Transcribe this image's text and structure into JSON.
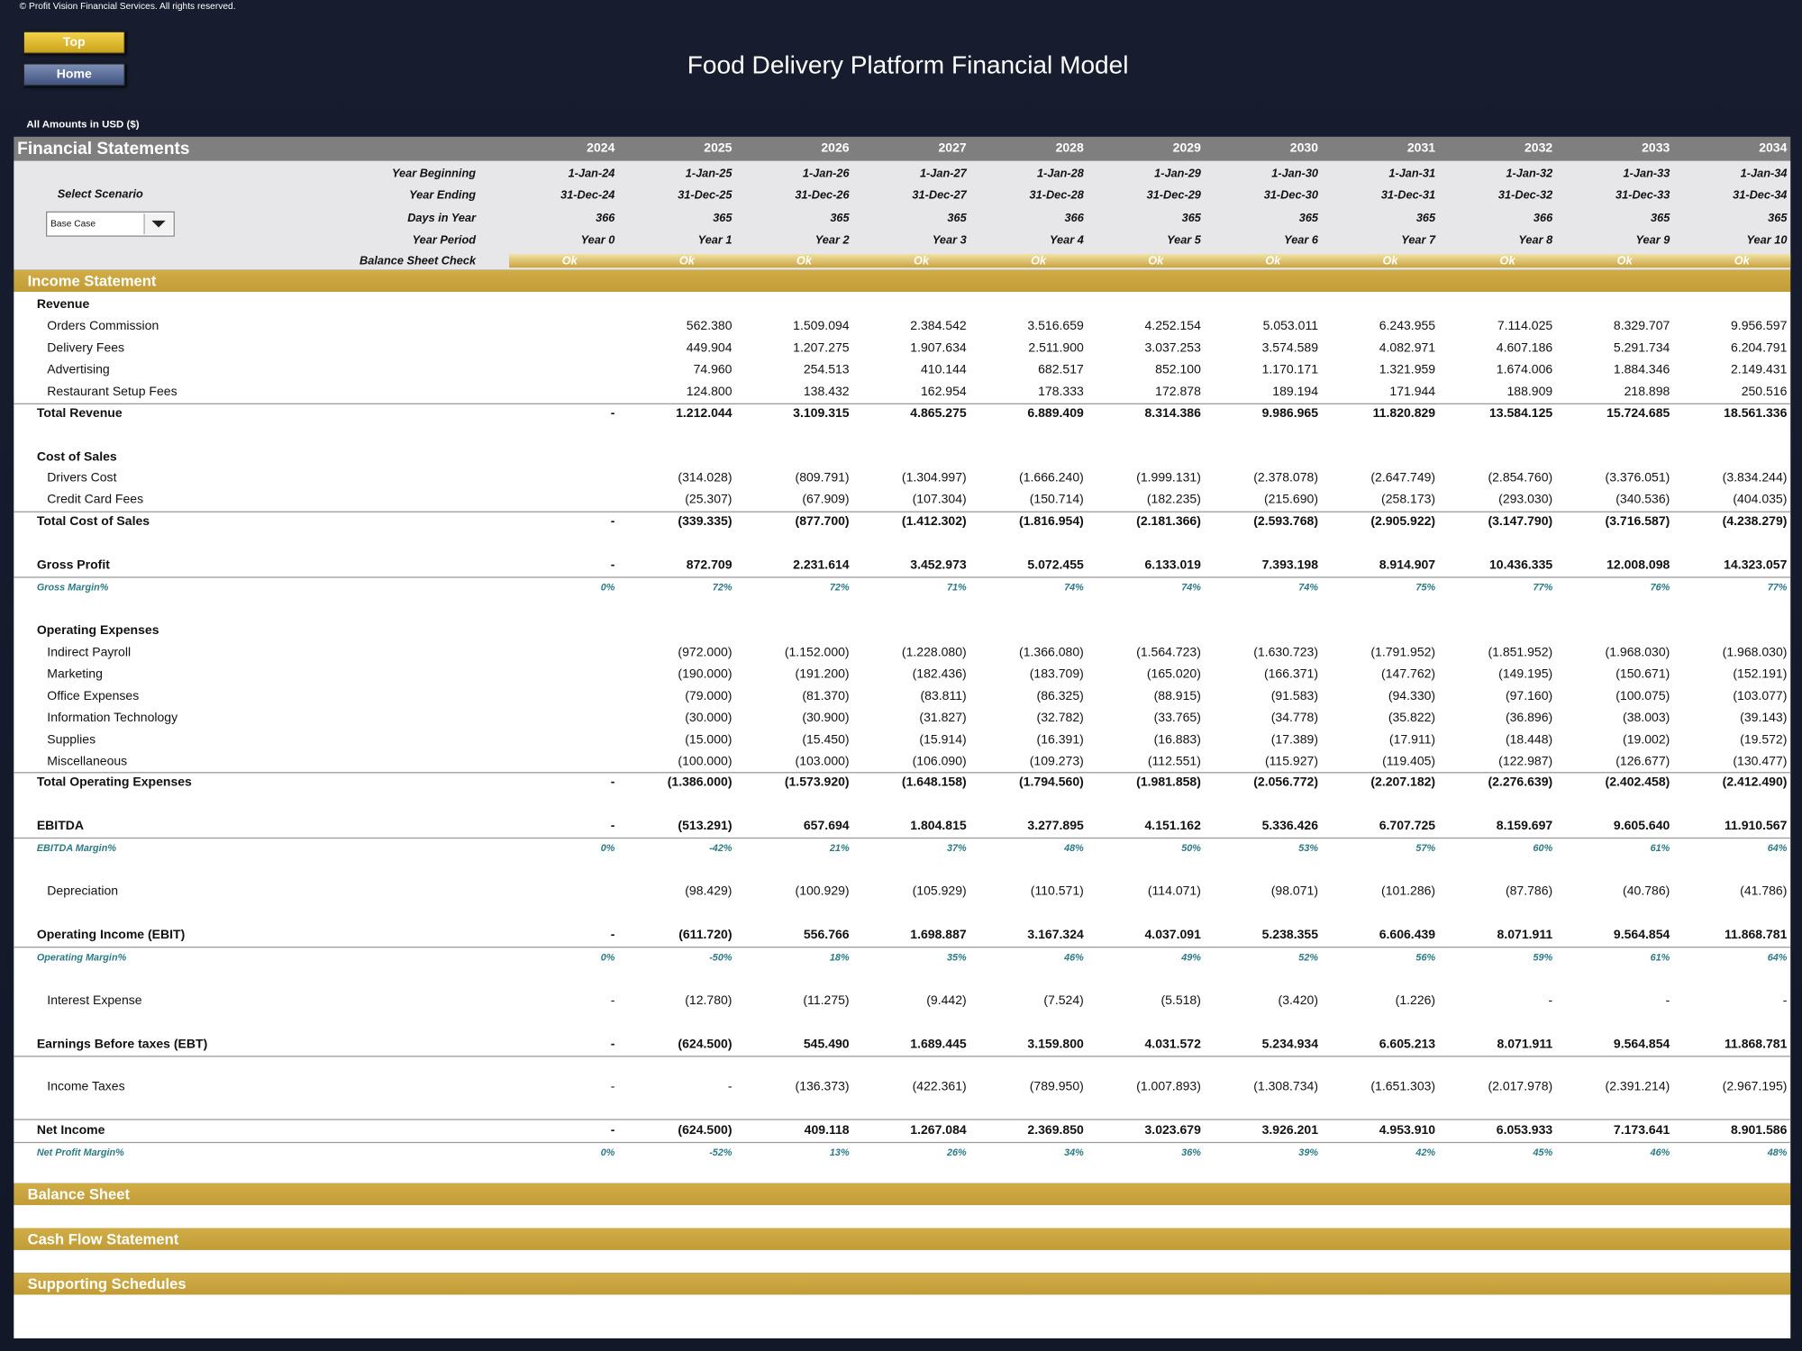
{
  "copyright": "© Profit Vision Financial Services. All rights reserved.",
  "buttons": [
    "Top",
    "Home"
  ],
  "title": "Food Delivery Platform Financial Model",
  "amounts_note": "All Amounts in  USD ($)",
  "header": {
    "section": "Financial Statements",
    "years": [
      "2024",
      "2025",
      "2026",
      "2027",
      "2028",
      "2029",
      "2030",
      "2031",
      "2032",
      "2033",
      "2034"
    ],
    "scenario_label": "Select Scenario",
    "scenario_value": "Base Case",
    "meta": [
      {
        "label": "Year Beginning",
        "values": [
          "1-Jan-24",
          "1-Jan-25",
          "1-Jan-26",
          "1-Jan-27",
          "1-Jan-28",
          "1-Jan-29",
          "1-Jan-30",
          "1-Jan-31",
          "1-Jan-32",
          "1-Jan-33",
          "1-Jan-34"
        ]
      },
      {
        "label": "Year Ending",
        "values": [
          "31-Dec-24",
          "31-Dec-25",
          "31-Dec-26",
          "31-Dec-27",
          "31-Dec-28",
          "31-Dec-29",
          "31-Dec-30",
          "31-Dec-31",
          "31-Dec-32",
          "31-Dec-33",
          "31-Dec-34"
        ]
      },
      {
        "label": "Days in Year",
        "values": [
          "366",
          "365",
          "365",
          "365",
          "366",
          "365",
          "365",
          "365",
          "366",
          "365",
          "365"
        ]
      },
      {
        "label": "Year Period",
        "values": [
          "Year 0",
          "Year 1",
          "Year 2",
          "Year 3",
          "Year 4",
          "Year 5",
          "Year 6",
          "Year 7",
          "Year 8",
          "Year 9",
          "Year 10"
        ]
      },
      {
        "label": "Balance Sheet Check",
        "values": [
          "Ok",
          "Ok",
          "Ok",
          "Ok",
          "Ok",
          "Ok",
          "Ok",
          "Ok",
          "Ok",
          "Ok",
          "Ok"
        ]
      }
    ]
  },
  "income_statement": {
    "title": "Income Statement",
    "rows": [
      {
        "label": "Revenue"
      },
      {
        "label": "Orders Commission",
        "values": [
          null,
          "562.380",
          "1.509.094",
          "2.384.542",
          "3.516.659",
          "4.252.154",
          "5.053.011",
          "6.243.955",
          "7.114.025",
          "8.329.707",
          "9.956.597"
        ]
      },
      {
        "label": "Delivery Fees",
        "values": [
          null,
          "449.904",
          "1.207.275",
          "1.907.634",
          "2.511.900",
          "3.037.253",
          "3.574.589",
          "4.082.971",
          "4.607.186",
          "5.291.734",
          "6.204.791"
        ]
      },
      {
        "label": "Advertising",
        "values": [
          null,
          "74.960",
          "254.513",
          "410.144",
          "682.517",
          "852.100",
          "1.170.171",
          "1.321.959",
          "1.674.006",
          "1.884.346",
          "2.149.431"
        ]
      },
      {
        "label": "Restaurant Setup Fees",
        "values": [
          null,
          "124.800",
          "138.432",
          "162.954",
          "178.333",
          "172.878",
          "189.194",
          "171.944",
          "188.909",
          "218.898",
          "250.516"
        ]
      },
      {
        "label": "Total Revenue",
        "values": [
          "-",
          "1.212.044",
          "3.109.315",
          "4.865.275",
          "6.889.409",
          "8.314.386",
          "9.986.965",
          "11.820.829",
          "13.584.125",
          "15.724.685",
          "18.561.336"
        ]
      },
      {
        "label": "Cost of Sales"
      },
      {
        "label": "Drivers Cost",
        "values": [
          null,
          "(314.028)",
          "(809.791)",
          "(1.304.997)",
          "(1.666.240)",
          "(1.999.131)",
          "(2.378.078)",
          "(2.647.749)",
          "(2.854.760)",
          "(3.376.051)",
          "(3.834.244)"
        ]
      },
      {
        "label": "Credit Card Fees",
        "values": [
          null,
          "(25.307)",
          "(67.909)",
          "(107.304)",
          "(150.714)",
          "(182.235)",
          "(215.690)",
          "(258.173)",
          "(293.030)",
          "(340.536)",
          "(404.035)"
        ]
      },
      {
        "label": "Total Cost of Sales",
        "values": [
          "-",
          "(339.335)",
          "(877.700)",
          "(1.412.302)",
          "(1.816.954)",
          "(2.181.366)",
          "(2.593.768)",
          "(2.905.922)",
          "(3.147.790)",
          "(3.716.587)",
          "(4.238.279)"
        ]
      },
      {
        "label": "Gross Profit",
        "values": [
          "-",
          "872.709",
          "2.231.614",
          "3.452.973",
          "5.072.455",
          "6.133.019",
          "7.393.198",
          "8.914.907",
          "10.436.335",
          "12.008.098",
          "14.323.057"
        ]
      },
      {
        "label": "Gross Margin%",
        "values": [
          "0%",
          "72%",
          "72%",
          "71%",
          "74%",
          "74%",
          "74%",
          "75%",
          "77%",
          "76%",
          "77%"
        ]
      },
      {
        "label": "Operating Expenses"
      },
      {
        "label": "Indirect Payroll",
        "values": [
          null,
          "(972.000)",
          "(1.152.000)",
          "(1.228.080)",
          "(1.366.080)",
          "(1.564.723)",
          "(1.630.723)",
          "(1.791.952)",
          "(1.851.952)",
          "(1.968.030)",
          "(1.968.030)"
        ]
      },
      {
        "label": "Marketing",
        "values": [
          null,
          "(190.000)",
          "(191.200)",
          "(182.436)",
          "(183.709)",
          "(165.020)",
          "(166.371)",
          "(147.762)",
          "(149.195)",
          "(150.671)",
          "(152.191)"
        ]
      },
      {
        "label": "Office Expenses",
        "values": [
          null,
          "(79.000)",
          "(81.370)",
          "(83.811)",
          "(86.325)",
          "(88.915)",
          "(91.583)",
          "(94.330)",
          "(97.160)",
          "(100.075)",
          "(103.077)"
        ]
      },
      {
        "label": "Information Technology",
        "values": [
          null,
          "(30.000)",
          "(30.900)",
          "(31.827)",
          "(32.782)",
          "(33.765)",
          "(34.778)",
          "(35.822)",
          "(36.896)",
          "(38.003)",
          "(39.143)"
        ]
      },
      {
        "label": "Supplies",
        "values": [
          null,
          "(15.000)",
          "(15.450)",
          "(15.914)",
          "(16.391)",
          "(16.883)",
          "(17.389)",
          "(17.911)",
          "(18.448)",
          "(19.002)",
          "(19.572)"
        ]
      },
      {
        "label": "Miscellaneous",
        "values": [
          null,
          "(100.000)",
          "(103.000)",
          "(106.090)",
          "(109.273)",
          "(112.551)",
          "(115.927)",
          "(119.405)",
          "(122.987)",
          "(126.677)",
          "(130.477)"
        ]
      },
      {
        "label": "Total Operating Expenses",
        "values": [
          "-",
          "(1.386.000)",
          "(1.573.920)",
          "(1.648.158)",
          "(1.794.560)",
          "(1.981.858)",
          "(2.056.772)",
          "(2.207.182)",
          "(2.276.639)",
          "(2.402.458)",
          "(2.412.490)"
        ]
      },
      {
        "label": "EBITDA",
        "values": [
          "-",
          "(513.291)",
          "657.694",
          "1.804.815",
          "3.277.895",
          "4.151.162",
          "5.336.426",
          "6.707.725",
          "8.159.697",
          "9.605.640",
          "11.910.567"
        ]
      },
      {
        "label": "EBITDA Margin%",
        "values": [
          "0%",
          "-42%",
          "21%",
          "37%",
          "48%",
          "50%",
          "53%",
          "57%",
          "60%",
          "61%",
          "64%"
        ]
      },
      {
        "label": "Depreciation",
        "values": [
          null,
          "(98.429)",
          "(100.929)",
          "(105.929)",
          "(110.571)",
          "(114.071)",
          "(98.071)",
          "(101.286)",
          "(87.786)",
          "(40.786)",
          "(41.786)"
        ]
      },
      {
        "label": "Operating Income (EBIT)",
        "values": [
          "-",
          "(611.720)",
          "556.766",
          "1.698.887",
          "3.167.324",
          "4.037.091",
          "5.238.355",
          "6.606.439",
          "8.071.911",
          "9.564.854",
          "11.868.781"
        ]
      },
      {
        "label": "Operating Margin%",
        "values": [
          "0%",
          "-50%",
          "18%",
          "35%",
          "46%",
          "49%",
          "52%",
          "56%",
          "59%",
          "61%",
          "64%"
        ]
      },
      {
        "label": "Interest Expense",
        "values": [
          "-",
          "(12.780)",
          "(11.275)",
          "(9.442)",
          "(7.524)",
          "(5.518)",
          "(3.420)",
          "(1.226)",
          "-",
          "-",
          "-"
        ]
      },
      {
        "label": "Earnings Before taxes (EBT)",
        "values": [
          "-",
          "(624.500)",
          "545.490",
          "1.689.445",
          "3.159.800",
          "4.031.572",
          "5.234.934",
          "6.605.213",
          "8.071.911",
          "9.564.854",
          "11.868.781"
        ]
      },
      {
        "label": "Income Taxes",
        "values": [
          "-",
          "-",
          "(136.373)",
          "(422.361)",
          "(789.950)",
          "(1.007.893)",
          "(1.308.734)",
          "(1.651.303)",
          "(2.017.978)",
          "(2.391.214)",
          "(2.967.195)"
        ]
      },
      {
        "label": "Net Income",
        "values": [
          "-",
          "(624.500)",
          "409.118",
          "1.267.084",
          "2.369.850",
          "3.023.679",
          "3.926.201",
          "4.953.910",
          "6.053.933",
          "7.173.641",
          "8.901.586"
        ]
      },
      {
        "label": "Net Profit Margin%",
        "values": [
          "0%",
          "-52%",
          "13%",
          "26%",
          "34%",
          "36%",
          "39%",
          "42%",
          "45%",
          "46%",
          "48%"
        ]
      }
    ]
  },
  "sections": [
    "Balance Sheet",
    "Cash Flow Statement",
    "Supporting Schedules"
  ]
}
